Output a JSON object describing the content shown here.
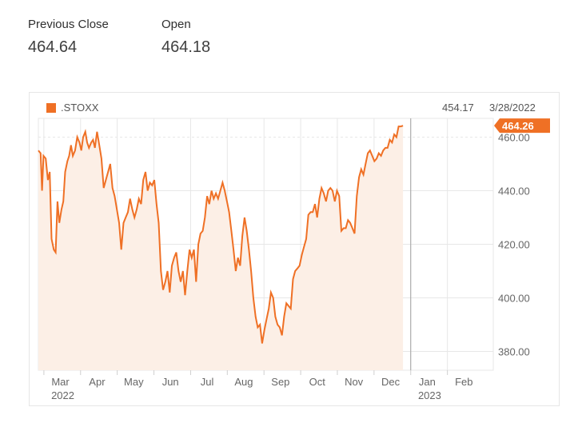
{
  "stats": {
    "previous_close_label": "Previous Close",
    "previous_close_value": "464.64",
    "open_label": "Open",
    "open_value": "464.18"
  },
  "legend": {
    "symbol": ".STOXX",
    "hover_value": "454.17",
    "hover_date": "3/28/2022",
    "swatch_color": "#ef7025"
  },
  "colors": {
    "line": "#ef7025",
    "fill": "#fcefe6",
    "grid": "#e7e7e7",
    "crosshair": "#a0a0a0"
  },
  "chart_data": {
    "type": "area",
    "title": "",
    "xlabel": "",
    "ylabel": "",
    "ylim": [
      373,
      467
    ],
    "xlim": [
      0,
      12.4
    ],
    "y_ticks": [
      "380.00",
      "400.00",
      "420.00",
      "440.00",
      "460.00"
    ],
    "x_ticks": [
      {
        "x": 0.6,
        "label": "Mar",
        "sub": "2022"
      },
      {
        "x": 1.6,
        "label": "Apr",
        "sub": ""
      },
      {
        "x": 2.6,
        "label": "May",
        "sub": ""
      },
      {
        "x": 3.6,
        "label": "Jun",
        "sub": ""
      },
      {
        "x": 4.6,
        "label": "Jul",
        "sub": ""
      },
      {
        "x": 5.6,
        "label": "Aug",
        "sub": ""
      },
      {
        "x": 6.6,
        "label": "Sep",
        "sub": ""
      },
      {
        "x": 7.6,
        "label": "Oct",
        "sub": ""
      },
      {
        "x": 8.6,
        "label": "Nov",
        "sub": ""
      },
      {
        "x": 9.6,
        "label": "Dec",
        "sub": ""
      },
      {
        "x": 10.6,
        "label": "Jan",
        "sub": "2023"
      },
      {
        "x": 11.6,
        "label": "Feb",
        "sub": ""
      }
    ],
    "series": [
      {
        "last_value_label": "464.26",
        "points": [
          [
            0.0,
            455
          ],
          [
            0.06,
            454
          ],
          [
            0.1,
            440
          ],
          [
            0.14,
            453
          ],
          [
            0.2,
            452
          ],
          [
            0.26,
            444
          ],
          [
            0.31,
            447
          ],
          [
            0.36,
            422
          ],
          [
            0.42,
            418
          ],
          [
            0.47,
            417
          ],
          [
            0.52,
            436
          ],
          [
            0.57,
            428
          ],
          [
            0.63,
            433
          ],
          [
            0.68,
            436
          ],
          [
            0.73,
            447
          ],
          [
            0.79,
            451
          ],
          [
            0.84,
            453
          ],
          [
            0.89,
            457
          ],
          [
            0.94,
            453
          ],
          [
            1.0,
            455
          ],
          [
            1.06,
            460
          ],
          [
            1.12,
            458
          ],
          [
            1.17,
            455
          ],
          [
            1.22,
            460
          ],
          [
            1.28,
            462
          ],
          [
            1.33,
            458
          ],
          [
            1.38,
            456
          ],
          [
            1.44,
            458
          ],
          [
            1.49,
            459
          ],
          [
            1.54,
            456
          ],
          [
            1.6,
            462
          ],
          [
            1.66,
            457
          ],
          [
            1.72,
            452
          ],
          [
            1.78,
            441
          ],
          [
            1.84,
            444
          ],
          [
            1.9,
            447
          ],
          [
            1.96,
            450
          ],
          [
            2.02,
            441
          ],
          [
            2.08,
            438
          ],
          [
            2.14,
            433
          ],
          [
            2.2,
            428
          ],
          [
            2.26,
            418
          ],
          [
            2.32,
            428
          ],
          [
            2.38,
            430
          ],
          [
            2.44,
            432
          ],
          [
            2.5,
            437
          ],
          [
            2.56,
            433
          ],
          [
            2.62,
            430
          ],
          [
            2.68,
            433
          ],
          [
            2.74,
            437
          ],
          [
            2.8,
            435
          ],
          [
            2.86,
            444
          ],
          [
            2.92,
            447
          ],
          [
            2.98,
            440
          ],
          [
            3.04,
            443
          ],
          [
            3.1,
            442
          ],
          [
            3.16,
            444
          ],
          [
            3.22,
            435
          ],
          [
            3.28,
            428
          ],
          [
            3.34,
            410
          ],
          [
            3.4,
            403
          ],
          [
            3.46,
            406
          ],
          [
            3.52,
            410
          ],
          [
            3.58,
            402
          ],
          [
            3.64,
            412
          ],
          [
            3.7,
            415
          ],
          [
            3.76,
            417
          ],
          [
            3.82,
            410
          ],
          [
            3.88,
            406
          ],
          [
            3.94,
            410
          ],
          [
            4.0,
            401
          ],
          [
            4.06,
            410
          ],
          [
            4.12,
            418
          ],
          [
            4.18,
            415
          ],
          [
            4.24,
            418
          ],
          [
            4.3,
            406
          ],
          [
            4.36,
            420
          ],
          [
            4.42,
            424
          ],
          [
            4.48,
            425
          ],
          [
            4.54,
            430
          ],
          [
            4.6,
            438
          ],
          [
            4.66,
            435
          ],
          [
            4.72,
            440
          ],
          [
            4.78,
            437
          ],
          [
            4.84,
            439
          ],
          [
            4.9,
            437
          ],
          [
            4.96,
            440
          ],
          [
            5.02,
            443
          ],
          [
            5.08,
            440
          ],
          [
            5.14,
            436
          ],
          [
            5.2,
            432
          ],
          [
            5.26,
            425
          ],
          [
            5.32,
            418
          ],
          [
            5.38,
            410
          ],
          [
            5.44,
            415
          ],
          [
            5.5,
            412
          ],
          [
            5.56,
            423
          ],
          [
            5.62,
            430
          ],
          [
            5.68,
            425
          ],
          [
            5.74,
            418
          ],
          [
            5.8,
            410
          ],
          [
            5.86,
            400
          ],
          [
            5.92,
            393
          ],
          [
            5.98,
            389
          ],
          [
            6.04,
            390
          ],
          [
            6.1,
            383
          ],
          [
            6.16,
            388
          ],
          [
            6.22,
            392
          ],
          [
            6.28,
            396
          ],
          [
            6.34,
            402
          ],
          [
            6.4,
            400
          ],
          [
            6.46,
            393
          ],
          [
            6.52,
            390
          ],
          [
            6.58,
            389
          ],
          [
            6.64,
            386
          ],
          [
            6.7,
            393
          ],
          [
            6.76,
            398
          ],
          [
            6.82,
            397
          ],
          [
            6.88,
            396
          ],
          [
            6.94,
            407
          ],
          [
            7.0,
            410
          ],
          [
            7.06,
            411
          ],
          [
            7.12,
            412
          ],
          [
            7.18,
            416
          ],
          [
            7.24,
            419
          ],
          [
            7.3,
            422
          ],
          [
            7.36,
            431
          ],
          [
            7.42,
            432
          ],
          [
            7.48,
            432
          ],
          [
            7.54,
            435
          ],
          [
            7.6,
            430
          ],
          [
            7.66,
            437
          ],
          [
            7.72,
            441
          ],
          [
            7.78,
            439
          ],
          [
            7.84,
            436
          ],
          [
            7.9,
            440
          ],
          [
            7.96,
            441
          ],
          [
            8.02,
            440
          ],
          [
            8.08,
            436
          ],
          [
            8.14,
            440
          ],
          [
            8.2,
            438
          ],
          [
            8.26,
            425
          ],
          [
            8.32,
            426
          ],
          [
            8.38,
            426
          ],
          [
            8.44,
            429
          ],
          [
            8.5,
            428
          ],
          [
            8.56,
            426
          ],
          [
            8.62,
            424
          ],
          [
            8.68,
            438
          ],
          [
            8.74,
            445
          ],
          [
            8.8,
            448
          ],
          [
            8.86,
            446
          ],
          [
            8.92,
            450
          ],
          [
            8.98,
            454
          ],
          [
            9.04,
            455
          ],
          [
            9.1,
            453
          ],
          [
            9.16,
            451
          ],
          [
            9.22,
            452
          ],
          [
            9.28,
            454
          ],
          [
            9.34,
            453
          ],
          [
            9.4,
            455
          ],
          [
            9.46,
            456
          ],
          [
            9.52,
            456
          ],
          [
            9.58,
            459
          ],
          [
            9.64,
            458
          ],
          [
            9.7,
            461
          ],
          [
            9.76,
            460
          ],
          [
            9.82,
            464
          ],
          [
            9.88,
            464
          ],
          [
            9.94,
            464.26
          ]
        ]
      }
    ]
  }
}
